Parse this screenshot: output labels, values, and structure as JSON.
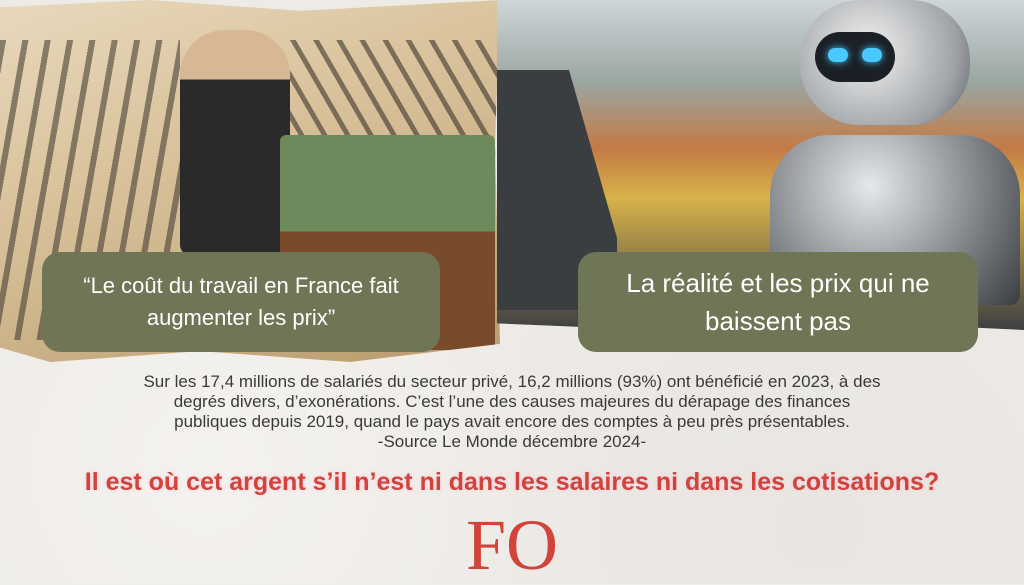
{
  "left_panel": {
    "quote": "“Le coût du travail en France fait augmenter les prix”"
  },
  "right_panel": {
    "caption": "La réalité et les prix qui ne baissent pas"
  },
  "body_text": {
    "lines": [
      "Sur les 17,4 millions de salariés du secteur privé, 16,2 millions (93%) ont bénéficié en 2023, à des",
      "degrés divers, d’exonérations. C’est l’une des causes majeures du dérapage des finances",
      "publiques depuis 2019, quand le pays avait encore des comptes à peu près présentables.",
      "-Source Le Monde décembre 2024-"
    ]
  },
  "question": "Il est où cet argent s’il n’est ni dans les salaires ni dans les cotisations?",
  "logo": "FO",
  "colors": {
    "accent_red": "#d0443c",
    "bubble_green": "#6e7656",
    "background": "#eeebe6"
  }
}
